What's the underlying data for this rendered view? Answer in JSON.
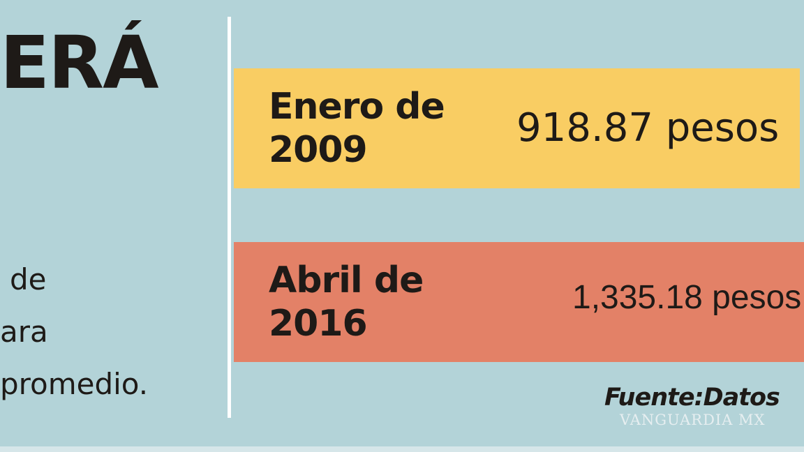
{
  "headline": "ERÁ",
  "body_lines": [
    "de",
    "ara",
    "promedio."
  ],
  "rows": [
    {
      "label_line1": "Enero de",
      "label_line2": "2009",
      "value": "918.87 pesos",
      "color": "#f9cd63"
    },
    {
      "label_line1": "Abril de",
      "label_line2": "2016",
      "value": "1,335.18 pesos",
      "color": "#e38167"
    }
  ],
  "source": "Fuente:Datos",
  "watermark": "VANGUARDIA MX",
  "colors": {
    "background": "#b3d3d8",
    "text": "#1e1a17"
  }
}
